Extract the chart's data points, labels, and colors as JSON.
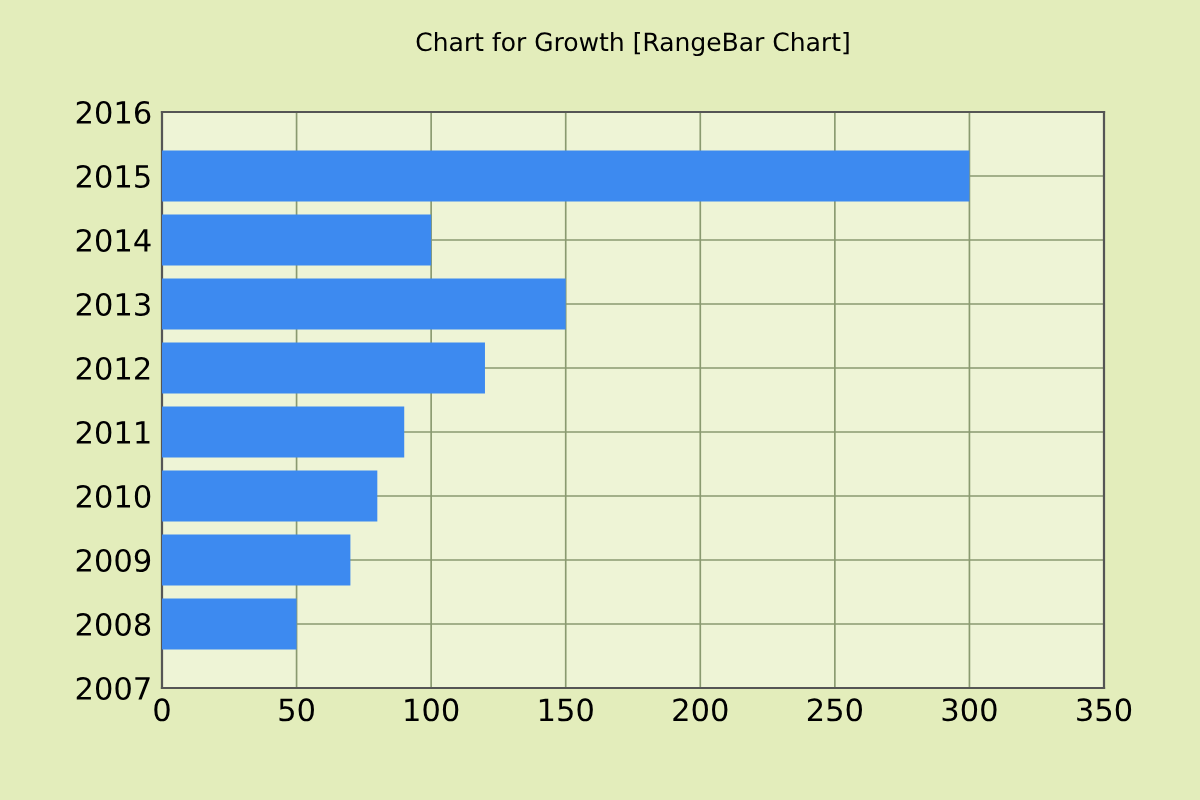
{
  "chart_data": {
    "type": "bar",
    "orientation": "horizontal",
    "title": "Chart for Growth [RangeBar Chart]",
    "x": [
      2008,
      2009,
      2010,
      2011,
      2012,
      2013,
      2014,
      2015
    ],
    "series": [
      {
        "color": "#3d8af0",
        "values": [
          50,
          70,
          80,
          90,
          120,
          150,
          100,
          300
        ]
      }
    ],
    "xlim": [
      0,
      350
    ],
    "xticks": [
      0,
      50,
      100,
      150,
      200,
      250,
      300,
      350
    ],
    "ylim": [
      2007,
      2016
    ],
    "yticks": [
      2007,
      2008,
      2009,
      2010,
      2011,
      2012,
      2013,
      2014,
      2015,
      2016
    ],
    "grid": true,
    "legend": false
  }
}
